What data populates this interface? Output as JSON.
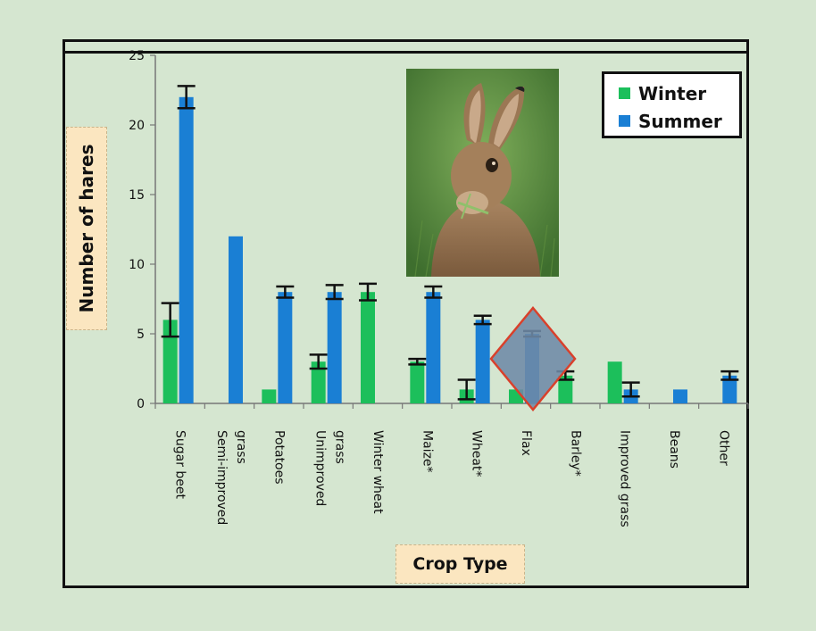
{
  "chart_data": {
    "type": "bar",
    "title": "",
    "xlabel": "Crop Type",
    "ylabel": "Number of hares",
    "ylim": [
      0,
      25
    ],
    "yticks": [
      0,
      5,
      10,
      15,
      20,
      25
    ],
    "categories": [
      [
        "Sugar beet"
      ],
      [
        "Semi-improved",
        "grass"
      ],
      [
        "Potatoes"
      ],
      [
        "Unimproved",
        "grass"
      ],
      [
        "Winter wheat"
      ],
      [
        "Maize*"
      ],
      [
        "Wheat*"
      ],
      [
        "Flax"
      ],
      [
        "Barley*"
      ],
      [
        "Improved grass"
      ],
      [
        "Beans"
      ],
      [
        "Other"
      ]
    ],
    "series": [
      {
        "name": "Winter",
        "color": "#1cbf5b",
        "values": [
          6,
          0,
          1,
          3,
          8,
          3,
          1,
          1,
          2,
          3,
          0,
          0
        ],
        "errors": [
          1.2,
          null,
          null,
          0.5,
          0.6,
          0.2,
          0.7,
          null,
          0.3,
          null,
          null,
          null
        ]
      },
      {
        "name": "Summer",
        "color": "#1a7fd4",
        "values": [
          22,
          12,
          8,
          8,
          0,
          8,
          6,
          5,
          0,
          1,
          1,
          2
        ],
        "errors": [
          0.8,
          null,
          0.4,
          0.5,
          null,
          0.4,
          0.3,
          0.2,
          null,
          0.5,
          null,
          0.3
        ]
      }
    ],
    "grid": false,
    "legend_position": "top-right",
    "highlight": {
      "category_index": 7,
      "shape": "diamond",
      "fill": "#6e8aa6",
      "stroke": "#d9402b"
    },
    "inset_image": "hare-photo"
  }
}
